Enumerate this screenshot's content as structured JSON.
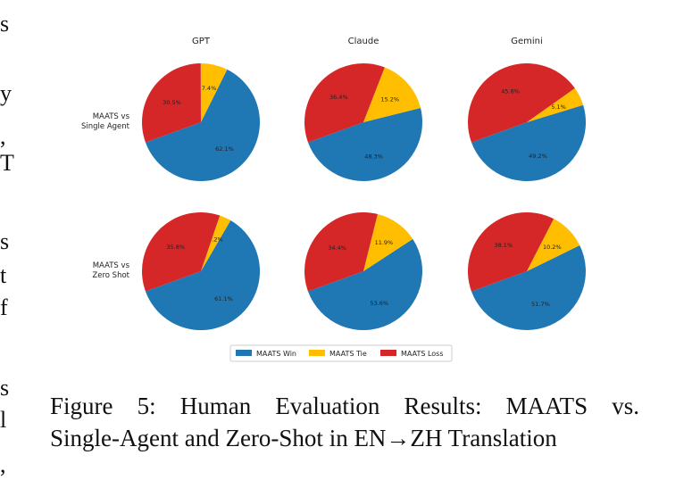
{
  "chart_data": {
    "type": "pie",
    "columns": [
      "GPT",
      "Claude",
      "Gemini"
    ],
    "rows": [
      "MAATS vs\nSingle Agent",
      "MAATS vs\nZero Shot"
    ],
    "categories": [
      "MAATS Win",
      "MAATS Tie",
      "MAATS Loss"
    ],
    "colors": {
      "win": "#1f77b4",
      "tie": "#ffbf00",
      "loss": "#d62728"
    },
    "legend_position": "bottom-center",
    "charts": [
      {
        "row": 0,
        "col": 0,
        "model": "GPT",
        "comparison": "Single Agent",
        "win": 62.1,
        "tie": 7.4,
        "loss": 30.5
      },
      {
        "row": 0,
        "col": 1,
        "model": "Claude",
        "comparison": "Single Agent",
        "win": 48.3,
        "tie": 15.2,
        "loss": 36.4
      },
      {
        "row": 0,
        "col": 2,
        "model": "Gemini",
        "comparison": "Single Agent",
        "win": 49.2,
        "tie": 5.1,
        "loss": 45.8
      },
      {
        "row": 1,
        "col": 0,
        "model": "GPT",
        "comparison": "Zero Shot",
        "win": 61.1,
        "tie": 3.2,
        "loss": 35.8
      },
      {
        "row": 1,
        "col": 1,
        "model": "Claude",
        "comparison": "Zero Shot",
        "win": 53.6,
        "tie": 11.9,
        "loss": 34.4
      },
      {
        "row": 1,
        "col": 2,
        "model": "Gemini",
        "comparison": "Zero Shot",
        "win": 51.7,
        "tie": 10.2,
        "loss": 38.1
      }
    ]
  },
  "caption": {
    "line1": "Figure 5: Human Evaluation Results: MAATS vs.",
    "line2": "Single-Agent and Zero-Shot in EN→ZH Translation"
  },
  "margin_fragments": [
    "s",
    "y",
    ",",
    "T",
    "s",
    "t",
    "f",
    "s",
    "l",
    ","
  ]
}
